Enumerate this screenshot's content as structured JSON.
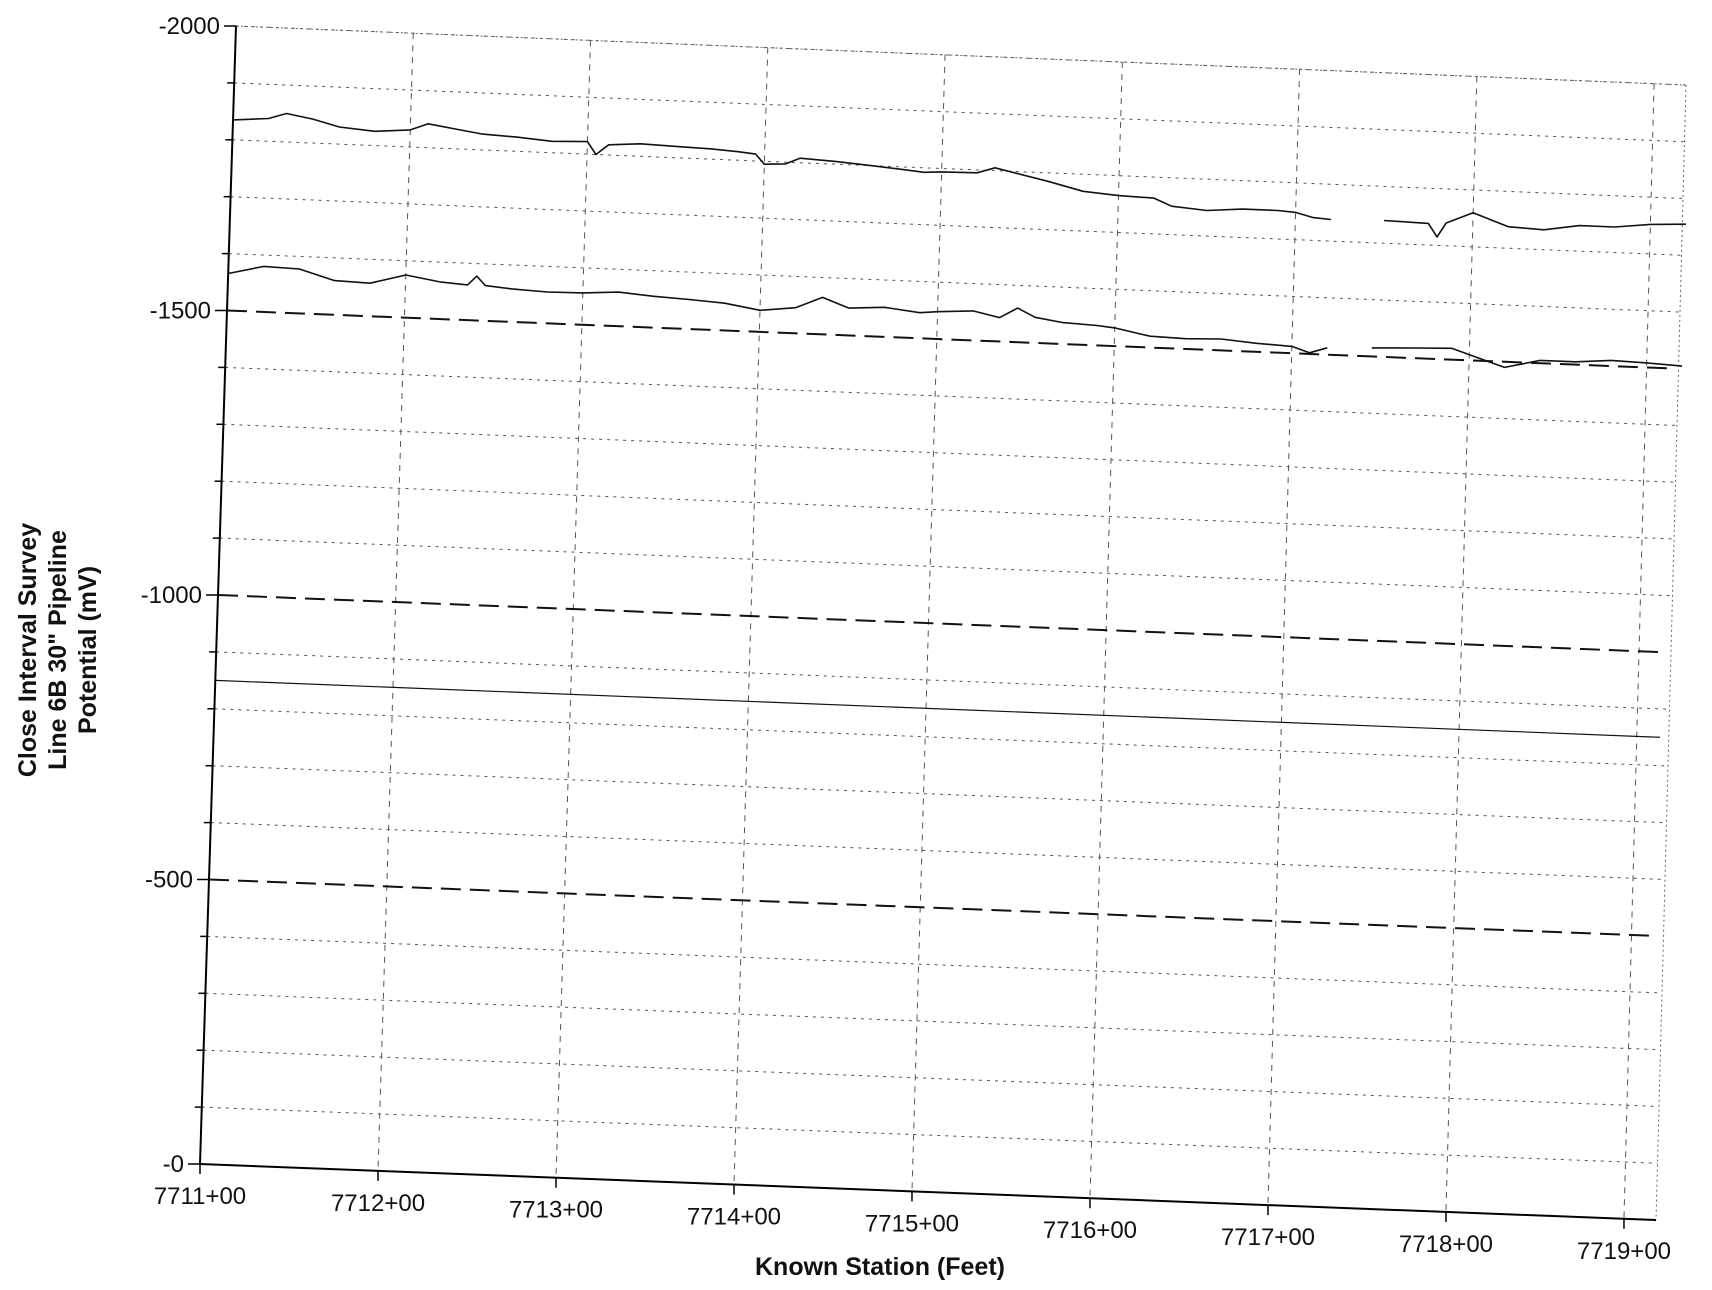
{
  "chart_data": {
    "type": "line",
    "title": "",
    "xlabel": "Known Station (Feet)",
    "ylabel_lines": [
      "Close Interval Survey",
      "Line 6B 30\"  Pipeline",
      "Potential (mV)"
    ],
    "x_tick_labels": [
      "7711+00",
      "7712+00",
      "7713+00",
      "7714+00",
      "7715+00",
      "7716+00",
      "7717+00",
      "7718+00",
      "7719+00"
    ],
    "y_tick_labels": [
      "-2000",
      "-1500",
      "-1000",
      "-500",
      "-0"
    ],
    "x_range_stations": [
      7711,
      7719
    ],
    "y_range": [
      0,
      -2000
    ],
    "y_axis_inverted": true,
    "grid": true,
    "legend": "none",
    "reference_lines": [
      {
        "style": "dashed",
        "value": -1500
      },
      {
        "style": "dashed",
        "value": -1000
      },
      {
        "style": "dashed",
        "value": -500
      },
      {
        "style": "solid",
        "value": -850
      }
    ],
    "series": [
      {
        "points": [
          [
            7711.0,
            -1835
          ],
          [
            7711.2,
            -1840
          ],
          [
            7711.3,
            -1850
          ],
          [
            7711.45,
            -1842
          ],
          [
            7711.6,
            -1830
          ],
          [
            7711.8,
            -1825
          ],
          [
            7712.0,
            -1830
          ],
          [
            7712.1,
            -1842
          ],
          [
            7712.25,
            -1835
          ],
          [
            7712.4,
            -1828
          ],
          [
            7712.6,
            -1825
          ],
          [
            7712.8,
            -1820
          ],
          [
            7713.0,
            -1822
          ],
          [
            7713.05,
            -1800
          ],
          [
            7713.12,
            -1818
          ],
          [
            7713.3,
            -1822
          ],
          [
            7713.5,
            -1820
          ],
          [
            7713.7,
            -1818
          ],
          [
            7713.85,
            -1815
          ],
          [
            7713.95,
            -1812
          ],
          [
            7714.0,
            -1795
          ],
          [
            7714.12,
            -1797
          ],
          [
            7714.2,
            -1808
          ],
          [
            7714.4,
            -1805
          ],
          [
            7714.6,
            -1800
          ],
          [
            7714.8,
            -1795
          ],
          [
            7714.9,
            -1792
          ],
          [
            7715.0,
            -1794
          ],
          [
            7715.2,
            -1795
          ],
          [
            7715.3,
            -1805
          ],
          [
            7715.45,
            -1795
          ],
          [
            7715.6,
            -1785
          ],
          [
            7715.8,
            -1770
          ],
          [
            7716.0,
            -1765
          ],
          [
            7716.2,
            -1763
          ],
          [
            7716.3,
            -1750
          ],
          [
            7716.5,
            -1745
          ],
          [
            7716.7,
            -1750
          ],
          [
            7716.9,
            -1750
          ],
          [
            7717.0,
            -1748
          ],
          [
            7717.1,
            -1740
          ],
          [
            7717.2,
            -1738
          ],
          [
            null,
            null
          ],
          [
            7717.5,
            -1740
          ],
          [
            7717.75,
            -1738
          ],
          [
            7717.8,
            -1715
          ],
          [
            7717.85,
            -1740
          ],
          [
            7718.0,
            -1760
          ],
          [
            7718.2,
            -1738
          ],
          [
            7718.4,
            -1735
          ],
          [
            7718.6,
            -1745
          ],
          [
            7718.8,
            -1745
          ],
          [
            7719.0,
            -1752
          ],
          [
            7719.2,
            -1755
          ]
        ]
      },
      {
        "points": [
          [
            7711.0,
            -1565
          ],
          [
            7711.2,
            -1580
          ],
          [
            7711.4,
            -1578
          ],
          [
            7711.6,
            -1560
          ],
          [
            7711.8,
            -1558
          ],
          [
            7712.0,
            -1575
          ],
          [
            7712.2,
            -1565
          ],
          [
            7712.35,
            -1562
          ],
          [
            7712.4,
            -1578
          ],
          [
            7712.45,
            -1562
          ],
          [
            7712.6,
            -1558
          ],
          [
            7712.8,
            -1555
          ],
          [
            7713.0,
            -1556
          ],
          [
            7713.2,
            -1560
          ],
          [
            7713.4,
            -1555
          ],
          [
            7713.6,
            -1552
          ],
          [
            7713.8,
            -1548
          ],
          [
            7714.0,
            -1538
          ],
          [
            7714.2,
            -1545
          ],
          [
            7714.35,
            -1565
          ],
          [
            7714.5,
            -1548
          ],
          [
            7714.7,
            -1552
          ],
          [
            7714.9,
            -1545
          ],
          [
            7715.0,
            -1548
          ],
          [
            7715.2,
            -1552
          ],
          [
            7715.35,
            -1542
          ],
          [
            7715.45,
            -1560
          ],
          [
            7715.55,
            -1545
          ],
          [
            7715.7,
            -1538
          ],
          [
            7715.9,
            -1535
          ],
          [
            7716.0,
            -1532
          ],
          [
            7716.2,
            -1520
          ],
          [
            7716.4,
            -1518
          ],
          [
            7716.6,
            -1520
          ],
          [
            7716.8,
            -1515
          ],
          [
            7717.0,
            -1512
          ],
          [
            7717.1,
            -1502
          ],
          [
            7717.2,
            -1512
          ],
          [
            null,
            null
          ],
          [
            7717.45,
            -1515
          ],
          [
            7717.7,
            -1518
          ],
          [
            7717.9,
            -1520
          ],
          [
            7718.05,
            -1505
          ],
          [
            7718.2,
            -1490
          ],
          [
            7718.4,
            -1505
          ],
          [
            7718.6,
            -1505
          ],
          [
            7718.8,
            -1510
          ],
          [
            7719.0,
            -1508
          ],
          [
            7719.2,
            -1505
          ]
        ]
      }
    ]
  }
}
